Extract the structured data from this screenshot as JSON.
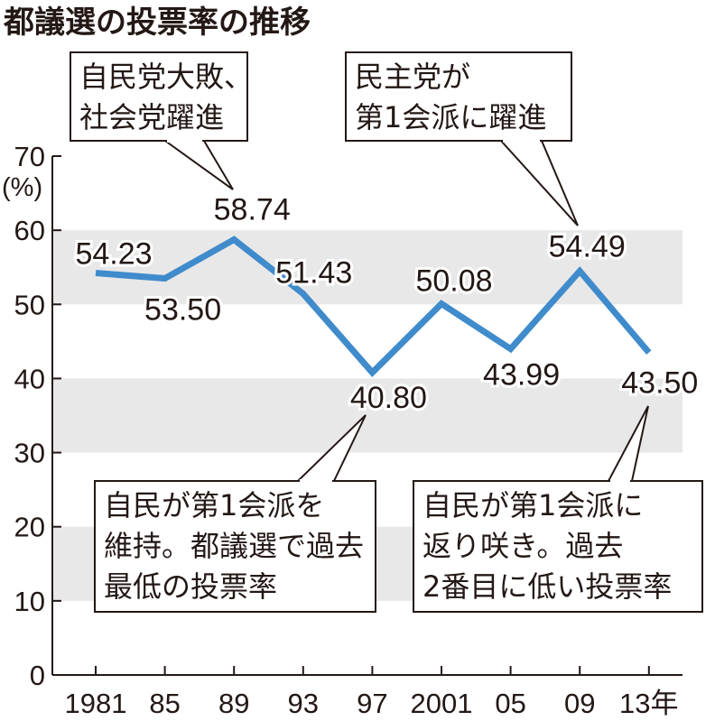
{
  "title": "都議選の投票率の推移",
  "chart_data": {
    "type": "line",
    "categories": [
      "1981",
      "85",
      "89",
      "93",
      "97",
      "2001",
      "05",
      "09",
      "13年"
    ],
    "series": [
      {
        "values": [
          54.23,
          53.5,
          58.74,
          51.43,
          40.8,
          50.08,
          43.99,
          54.49,
          43.5
        ]
      }
    ],
    "data_labels": [
      "54.23",
      "53.50",
      "58.74",
      "51.43",
      "40.80",
      "50.08",
      "43.99",
      "54.49",
      "43.50"
    ],
    "ylim": [
      0,
      70
    ],
    "yticks": [
      0,
      10,
      20,
      30,
      40,
      50,
      60,
      70
    ],
    "ytick_labels": [
      "0",
      "10",
      "20",
      "30",
      "40",
      "50",
      "60",
      "70"
    ],
    "yunit": "(%)",
    "grid": "alternating horizontal bands",
    "line_color": "#3f8bcc",
    "band_color": "#e8e8e8",
    "annotations": [
      {
        "point_index": 2,
        "lines": [
          "自民党大敗、",
          "社会党躍進"
        ]
      },
      {
        "point_index": 7,
        "lines": [
          "民主党が",
          "第1会派に躍進"
        ]
      },
      {
        "point_index": 4,
        "lines": [
          "自民が第1会派を",
          "維持。都議選で過去",
          "最低の投票率"
        ]
      },
      {
        "point_index": 8,
        "lines": [
          "自民が第1会派に",
          "返り咲き。過去",
          "2番目に低い投票率"
        ]
      }
    ]
  }
}
